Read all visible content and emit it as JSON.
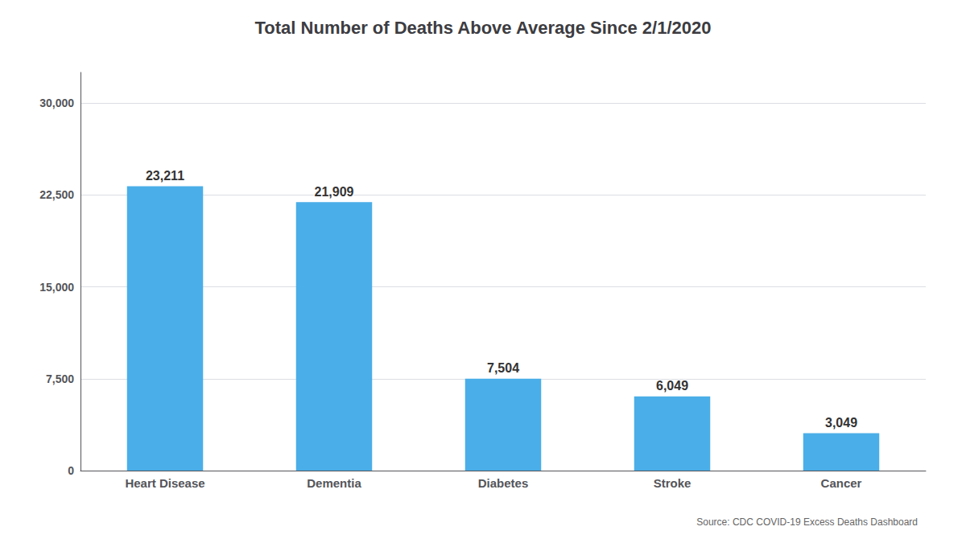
{
  "chart_data": {
    "type": "bar",
    "title": "Total Number of Deaths Above Average Since 2/1/2020",
    "categories": [
      "Heart Disease",
      "Dementia",
      "Diabetes",
      "Stroke",
      "Cancer"
    ],
    "values": [
      23211,
      21909,
      7504,
      6049,
      3049
    ],
    "value_labels": [
      "23,211",
      "21,909",
      "7,504",
      "6,049",
      "3,049"
    ],
    "data_labels": true,
    "color": "#4aaee8",
    "ylim": [
      0,
      32500
    ],
    "yticks": [
      0,
      {
        "value": 7500,
        "label": "7,500"
      },
      {
        "value": 15000,
        "label": "15,000"
      },
      {
        "value": 22500,
        "label": "22,500"
      },
      {
        "value": 30000,
        "label": "30,000"
      }
    ],
    "grid": true,
    "annotations": [
      "Source: CDC COVID-19 Excess Deaths Dashboard"
    ]
  }
}
